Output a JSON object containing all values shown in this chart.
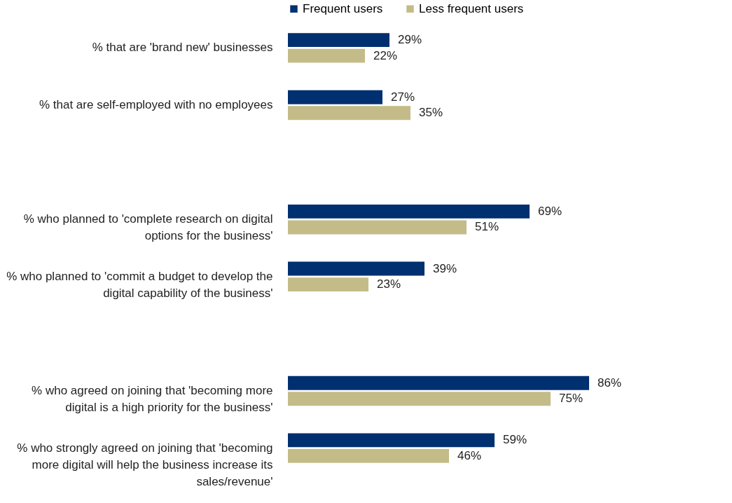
{
  "chart_data": {
    "type": "bar",
    "orientation": "horizontal",
    "legend": "top",
    "categories": [
      "% that are 'brand new' businesses",
      "% that are self-employed with no employees",
      null,
      "% who planned to 'complete research on digital options for the business'",
      "% who planned to 'commit a budget to develop the digital capability of the business'",
      null,
      "% who agreed on joining that 'becoming more digital is a high priority for the business'",
      "% who strongly agreed on joining that 'becoming more digital will help the business increase its sales/revenue'"
    ],
    "series": [
      {
        "name": "Frequent users",
        "color": "#003070",
        "values": [
          29,
          27,
          null,
          69,
          39,
          null,
          86,
          59
        ],
        "value_labels": [
          "29%",
          "27%",
          null,
          "69%",
          "39%",
          null,
          "86%",
          "59%"
        ]
      },
      {
        "name": "Less frequent users",
        "color": "#c4bc88",
        "values": [
          22,
          35,
          null,
          51,
          23,
          null,
          75,
          46
        ],
        "value_labels": [
          "22%",
          "35%",
          null,
          "51%",
          "23%",
          null,
          "75%",
          "46%"
        ]
      }
    ]
  }
}
